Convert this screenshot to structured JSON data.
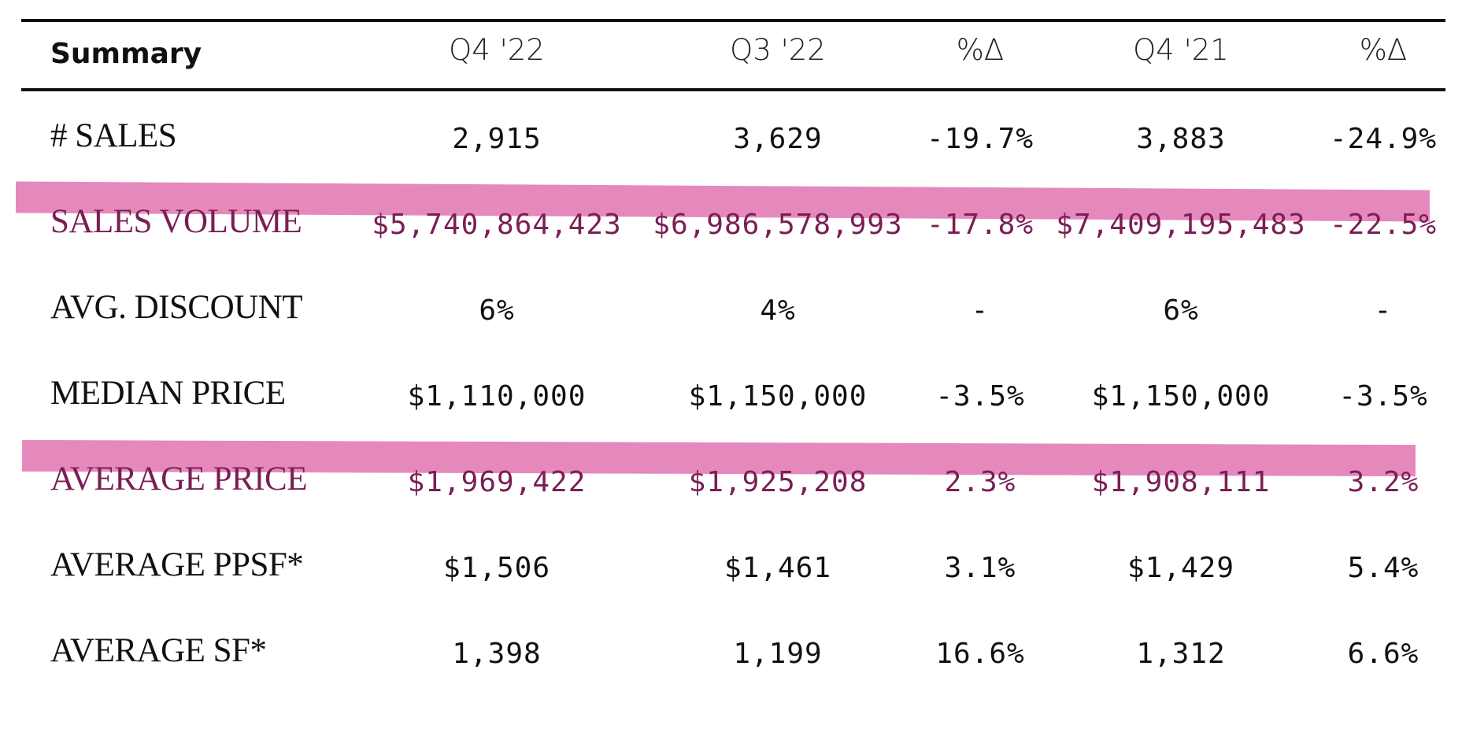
{
  "table": {
    "header": {
      "label": "Summary",
      "columns": [
        "Q4 '22",
        "Q3 '22",
        "%Δ",
        "Q4 '21",
        "%Δ"
      ]
    },
    "highlight_color": "#e589bd",
    "rows": [
      {
        "label": "# SALES",
        "values": [
          "2,915",
          "3,629",
          "-19.7%",
          "3,883",
          "-24.9%"
        ],
        "highlighted": false
      },
      {
        "label": "SALES VOLUME",
        "values": [
          "$5,740,864,423",
          "$6,986,578,993",
          "-17.8%",
          "$7,409,195,483",
          "-22.5%"
        ],
        "highlighted": true
      },
      {
        "label": "AVG. DISCOUNT",
        "values": [
          "6%",
          "4%",
          "-",
          "6%",
          "-"
        ],
        "highlighted": false
      },
      {
        "label": "MEDIAN PRICE",
        "values": [
          "$1,110,000",
          "$1,150,000",
          "-3.5%",
          "$1,150,000",
          "-3.5%"
        ],
        "highlighted": false
      },
      {
        "label": "AVERAGE PRICE",
        "values": [
          "$1,969,422",
          "$1,925,208",
          "2.3%",
          "$1,908,111",
          "3.2%"
        ],
        "highlighted": true
      },
      {
        "label": "AVERAGE PPSF*",
        "values": [
          "$1,506",
          "$1,461",
          "3.1%",
          "$1,429",
          "5.4%"
        ],
        "highlighted": false
      },
      {
        "label": "AVERAGE SF*",
        "values": [
          "1,398",
          "1,199",
          "16.6%",
          "1,312",
          "6.6%"
        ],
        "highlighted": false
      }
    ]
  }
}
